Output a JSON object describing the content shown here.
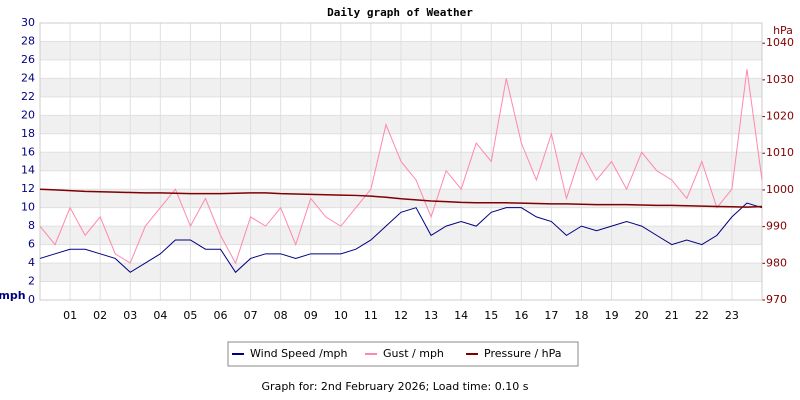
{
  "chart_data": {
    "type": "line",
    "title": "Daily graph of Weather",
    "ylabel": "mph",
    "y2label": "hPa",
    "footer": "Graph for: 2nd February 2026; Load time: 0.10 s",
    "x": [
      0,
      0.5,
      1,
      1.5,
      2,
      2.5,
      3,
      3.5,
      4,
      4.5,
      5,
      5.5,
      6,
      6.5,
      7,
      7.5,
      8,
      8.5,
      9,
      9.5,
      10,
      10.5,
      11,
      11.5,
      12,
      12.5,
      13,
      13.5,
      14,
      14.5,
      15,
      15.5,
      16,
      16.5,
      17,
      17.5,
      18,
      18.5,
      19,
      19.5,
      20,
      20.5,
      21,
      21.5,
      22,
      22.5,
      23,
      23.5,
      24
    ],
    "xlim": [
      0,
      24
    ],
    "xticks": [
      {
        "value": 1,
        "label": "01"
      },
      {
        "value": 2,
        "label": "02"
      },
      {
        "value": 3,
        "label": "03"
      },
      {
        "value": 4,
        "label": "04"
      },
      {
        "value": 5,
        "label": "05"
      },
      {
        "value": 6,
        "label": "06"
      },
      {
        "value": 7,
        "label": "07"
      },
      {
        "value": 8,
        "label": "08"
      },
      {
        "value": 9,
        "label": "09"
      },
      {
        "value": 10,
        "label": "10"
      },
      {
        "value": 11,
        "label": "11"
      },
      {
        "value": 12,
        "label": "12"
      },
      {
        "value": 13,
        "label": "13"
      },
      {
        "value": 14,
        "label": "14"
      },
      {
        "value": 15,
        "label": "15"
      },
      {
        "value": 16,
        "label": "16"
      },
      {
        "value": 17,
        "label": "17"
      },
      {
        "value": 18,
        "label": "18"
      },
      {
        "value": 19,
        "label": "19"
      },
      {
        "value": 20,
        "label": "20"
      },
      {
        "value": 21,
        "label": "21"
      },
      {
        "value": 22,
        "label": "22"
      },
      {
        "value": 23,
        "label": "23"
      }
    ],
    "ylim": [
      0,
      30
    ],
    "yticks": [
      0,
      2,
      4,
      6,
      8,
      10,
      12,
      14,
      16,
      18,
      20,
      22,
      24,
      26,
      28,
      30
    ],
    "y2lim": [
      970,
      1045.5
    ],
    "y2ticks": [
      970,
      980,
      990,
      1000,
      1010,
      1020,
      1030,
      1040
    ],
    "grid": true,
    "series": [
      {
        "name": "Gust / mph",
        "color": "#ff88aa",
        "values": [
          8,
          6,
          10,
          7,
          9,
          5,
          4,
          8,
          10,
          12,
          8,
          11,
          7,
          4,
          9,
          8,
          10,
          6,
          11,
          9,
          8,
          10,
          12,
          19,
          15,
          13,
          9,
          14,
          12,
          17,
          15,
          24,
          17,
          13,
          18,
          11,
          16,
          13,
          15,
          12,
          16,
          14,
          13,
          11,
          15,
          10,
          12,
          25,
          13
        ]
      },
      {
        "name": "Wind Speed /mph",
        "color": "#000080",
        "values": [
          4.5,
          5,
          5.5,
          5.5,
          5,
          4.5,
          3,
          4,
          5,
          6.5,
          6.5,
          5.5,
          5.5,
          3,
          4.5,
          5,
          5,
          4.5,
          5,
          5,
          5,
          5.5,
          6.5,
          8,
          9.5,
          10,
          7,
          8,
          8.5,
          8,
          9.5,
          10,
          10,
          9,
          8.5,
          7,
          8,
          7.5,
          8,
          8.5,
          8,
          7,
          6,
          6.5,
          6,
          7,
          9,
          10.5,
          10
        ]
      },
      {
        "name": "Pressure / hPa",
        "color": "#800000",
        "axis": "y2",
        "values": [
          1000.2,
          1000,
          999.8,
          999.6,
          999.5,
          999.4,
          999.3,
          999.2,
          999.2,
          999.1,
          999,
          999,
          999,
          999.1,
          999.2,
          999.2,
          999,
          998.9,
          998.8,
          998.7,
          998.6,
          998.5,
          998.3,
          998,
          997.6,
          997.3,
          997,
          996.8,
          996.6,
          996.5,
          996.5,
          996.5,
          996.4,
          996.3,
          996.2,
          996.2,
          996.1,
          996,
          996,
          996,
          995.9,
          995.8,
          995.8,
          995.7,
          995.6,
          995.5,
          995.4,
          995.3,
          995.5
        ]
      }
    ]
  }
}
